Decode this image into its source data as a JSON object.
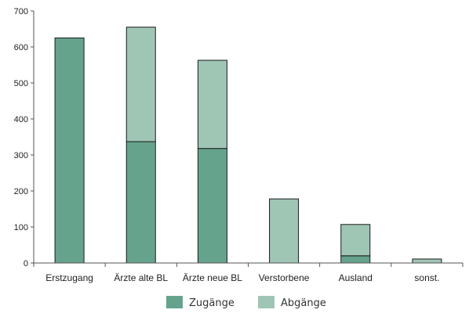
{
  "chart_data": {
    "type": "bar",
    "stacked": true,
    "categories": [
      "Erstzugang",
      "Ärzte alte BL",
      "Ärzte neue BL",
      "Verstorbene",
      "Ausland",
      "sonst."
    ],
    "series": [
      {
        "name": "Zugänge",
        "color": "#66a38c",
        "values": [
          625,
          337,
          318,
          0,
          20,
          0
        ]
      },
      {
        "name": "Abgänge",
        "color": "#9fc5b5",
        "values": [
          0,
          318,
          245,
          178,
          87,
          11
        ]
      }
    ],
    "ylim": [
      0,
      700
    ],
    "yticks": [
      0,
      100,
      200,
      300,
      400,
      500,
      600,
      700
    ],
    "title": "",
    "xlabel": "",
    "ylabel": "",
    "grid": false,
    "legend": "bottom"
  }
}
